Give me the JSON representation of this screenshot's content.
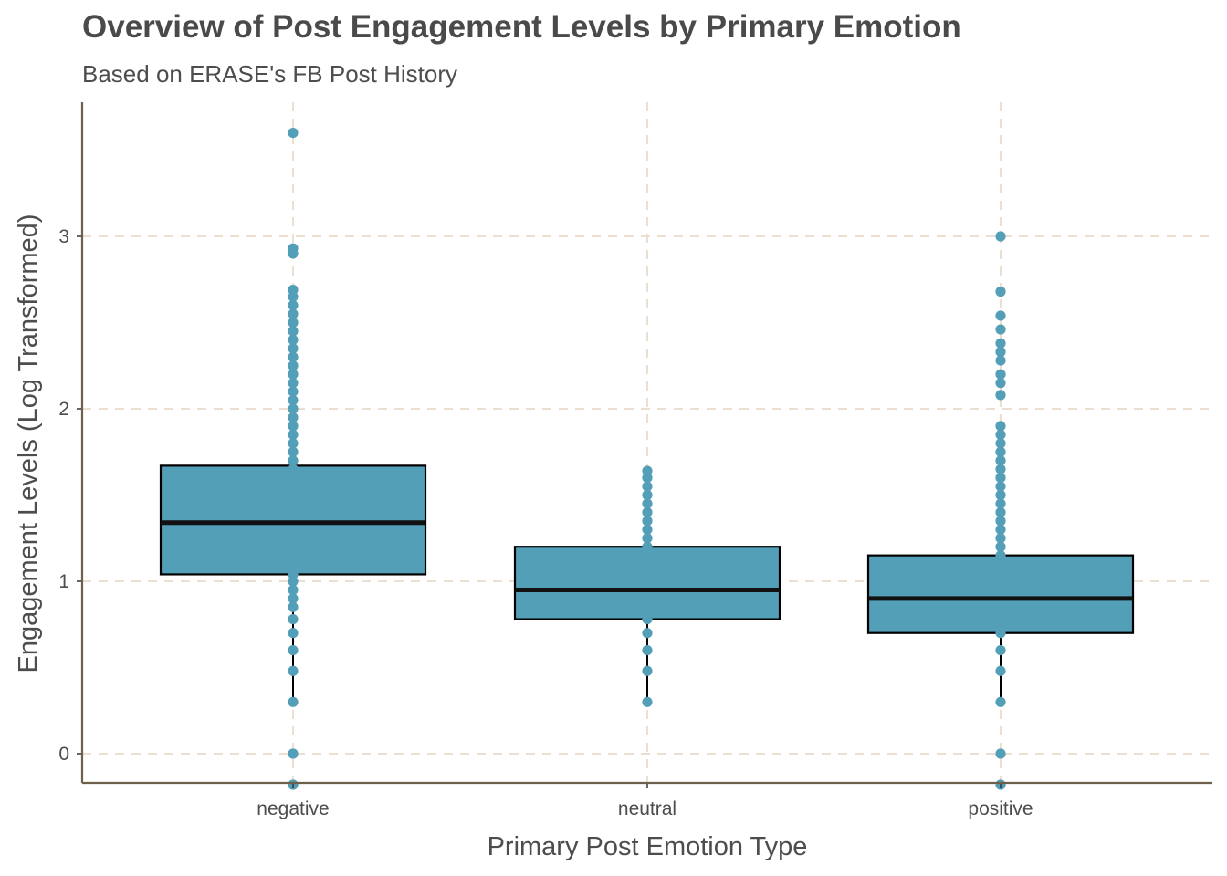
{
  "chart_data": {
    "type": "boxplot",
    "title": "Overview of Post Engagement Levels by Primary Emotion",
    "subtitle": "Based on ERASE's FB Post History",
    "xlabel": "Primary Post Emotion Type",
    "ylabel": "Engagement Levels (Log Transformed)",
    "ylim": [
      -0.17,
      3.77
    ],
    "yticks": [
      0,
      1,
      2,
      3
    ],
    "grid": true,
    "colors": {
      "fill": "#549fb8",
      "point": "#549fb8",
      "box_border": "#000000",
      "median": "#111111",
      "grid": "#eadfd0",
      "axis": "#6e5f4a"
    },
    "categories": [
      "negative",
      "neutral",
      "positive"
    ],
    "boxes": [
      {
        "category": "negative",
        "whisker_low": 0.3,
        "q1": 1.04,
        "median": 1.34,
        "q3": 1.67,
        "whisker_high": 2.62
      },
      {
        "category": "neutral",
        "whisker_low": 0.3,
        "q1": 0.78,
        "median": 0.95,
        "q3": 1.2,
        "whisker_high": 1.64
      },
      {
        "category": "positive",
        "whisker_low": 0.3,
        "q1": 0.7,
        "median": 0.9,
        "q3": 1.15,
        "whisker_high": 1.82
      }
    ],
    "points": [
      {
        "category": "negative",
        "y": [
          -0.18,
          0,
          0.3,
          0.48,
          0.6,
          0.7,
          0.78,
          0.85,
          0.9,
          0.95,
          1.0,
          1.04,
          1.08,
          1.12,
          1.16,
          1.2,
          1.25,
          1.3,
          1.35,
          1.4,
          1.45,
          1.5,
          1.55,
          1.6,
          1.65,
          1.7,
          1.75,
          1.8,
          1.85,
          1.9,
          1.95,
          2.0,
          2.05,
          2.1,
          2.15,
          2.2,
          2.25,
          2.3,
          2.35,
          2.4,
          2.45,
          2.5,
          2.55,
          2.6,
          2.65,
          2.69,
          2.9,
          2.93,
          3.6
        ]
      },
      {
        "category": "neutral",
        "y": [
          0.3,
          0.48,
          0.6,
          0.7,
          0.78,
          0.85,
          0.9,
          0.95,
          1.0,
          1.05,
          1.1,
          1.15,
          1.2,
          1.25,
          1.3,
          1.35,
          1.4,
          1.45,
          1.5,
          1.55,
          1.6,
          1.64
        ]
      },
      {
        "category": "positive",
        "y": [
          -0.18,
          0,
          0.3,
          0.48,
          0.6,
          0.7,
          0.75,
          0.8,
          0.85,
          0.9,
          0.95,
          1.0,
          1.05,
          1.1,
          1.15,
          1.2,
          1.25,
          1.3,
          1.35,
          1.4,
          1.45,
          1.5,
          1.55,
          1.6,
          1.65,
          1.7,
          1.75,
          1.8,
          1.85,
          1.9,
          2.08,
          2.15,
          2.2,
          2.28,
          2.33,
          2.38,
          2.46,
          2.54,
          2.68,
          3.0
        ]
      }
    ]
  }
}
